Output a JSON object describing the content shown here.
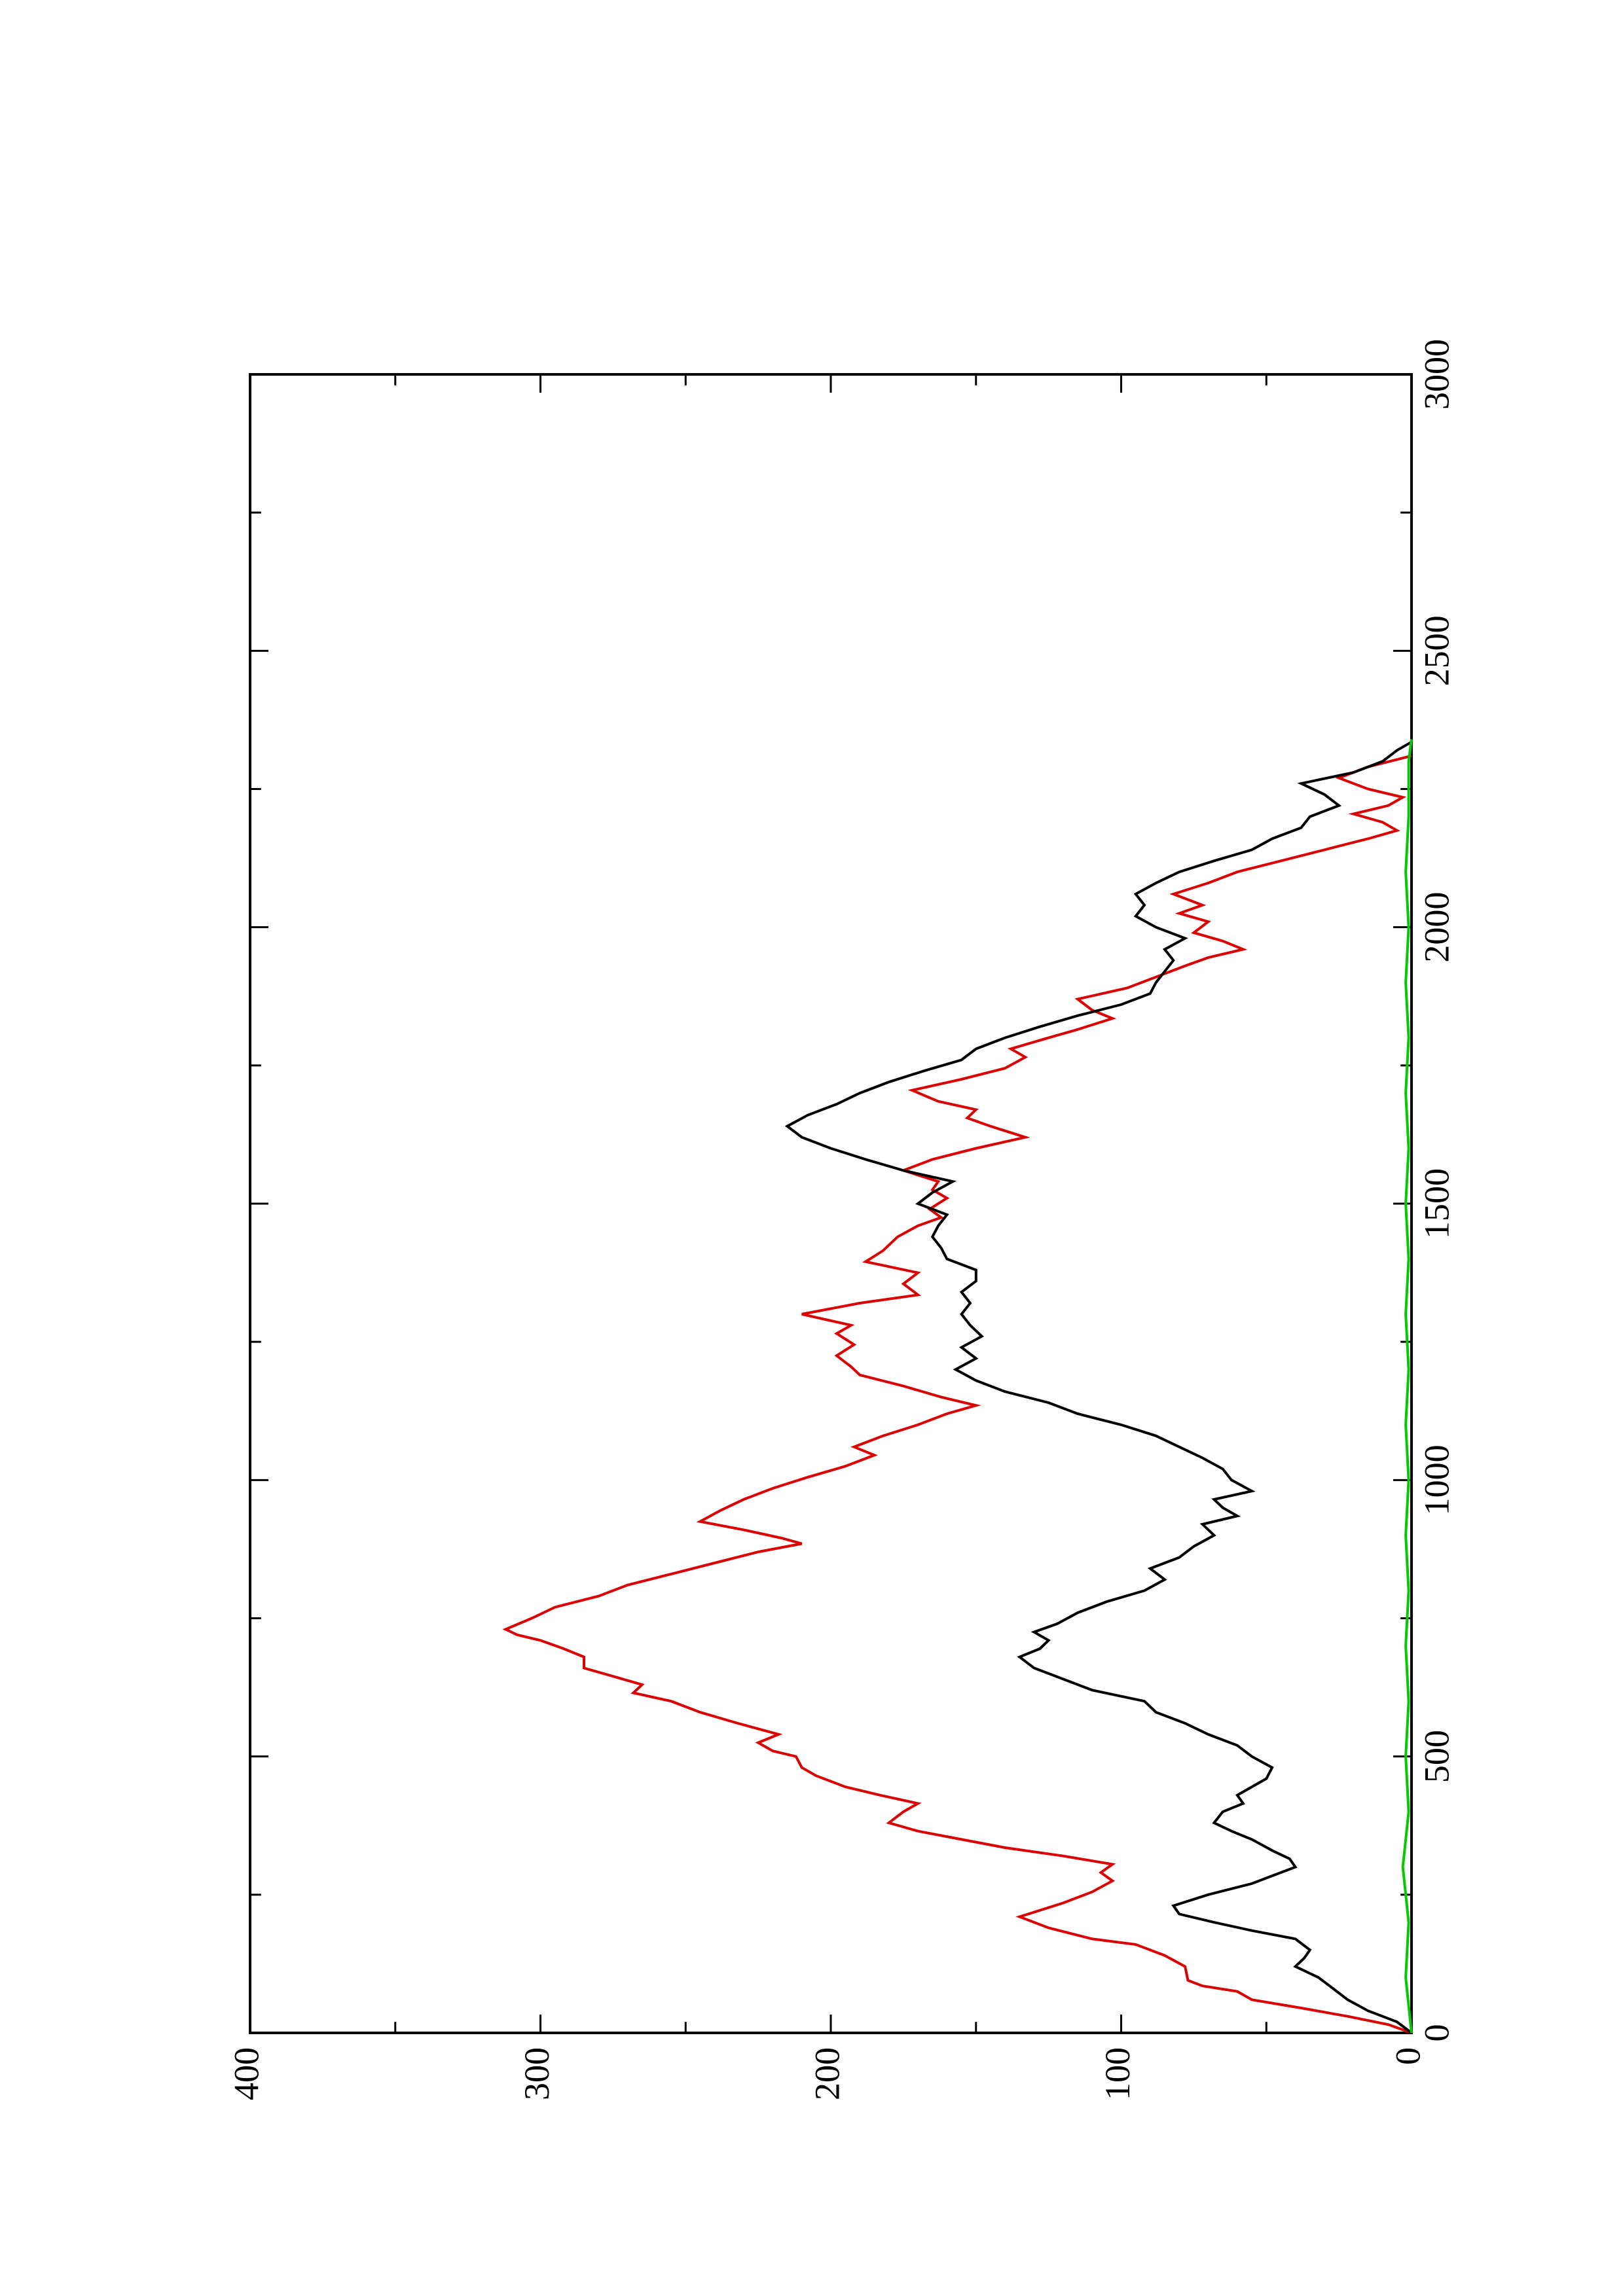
{
  "chart_data": {
    "type": "line",
    "rotated": "90 degrees counter-clockwise",
    "xlim": [
      0,
      3000
    ],
    "ylim": [
      0,
      400
    ],
    "x_ticks": [
      0,
      500,
      1000,
      1500,
      2000,
      2500,
      3000
    ],
    "y_ticks": [
      0,
      100,
      200,
      300,
      400
    ],
    "x_tick_labels": [
      "0",
      "500",
      "1000",
      "1500",
      "2000",
      "2500",
      "3000"
    ],
    "y_tick_labels": [
      "0",
      "100",
      "200",
      "300",
      "400"
    ],
    "grid": false,
    "legend": "none",
    "series": [
      {
        "color": "#dd0000",
        "points": [
          [
            0,
            0
          ],
          [
            15,
            8
          ],
          [
            30,
            22
          ],
          [
            45,
            38
          ],
          [
            60,
            55
          ],
          [
            75,
            60
          ],
          [
            85,
            72
          ],
          [
            95,
            77
          ],
          [
            120,
            78
          ],
          [
            140,
            85
          ],
          [
            160,
            95
          ],
          [
            170,
            110
          ],
          [
            190,
            125
          ],
          [
            210,
            135
          ],
          [
            235,
            120
          ],
          [
            255,
            110
          ],
          [
            275,
            103
          ],
          [
            290,
            107
          ],
          [
            305,
            103
          ],
          [
            320,
            120
          ],
          [
            335,
            140
          ],
          [
            350,
            155
          ],
          [
            365,
            170
          ],
          [
            380,
            180
          ],
          [
            400,
            175
          ],
          [
            415,
            170
          ],
          [
            430,
            183
          ],
          [
            445,
            195
          ],
          [
            465,
            205
          ],
          [
            480,
            210
          ],
          [
            500,
            212
          ],
          [
            510,
            220
          ],
          [
            525,
            225
          ],
          [
            540,
            218
          ],
          [
            560,
            232
          ],
          [
            580,
            245
          ],
          [
            600,
            255
          ],
          [
            615,
            268
          ],
          [
            630,
            265
          ],
          [
            645,
            275
          ],
          [
            660,
            285
          ],
          [
            680,
            285
          ],
          [
            695,
            292
          ],
          [
            710,
            300
          ],
          [
            720,
            308
          ],
          [
            730,
            312
          ],
          [
            750,
            303
          ],
          [
            770,
            295
          ],
          [
            790,
            280
          ],
          [
            810,
            270
          ],
          [
            830,
            255
          ],
          [
            850,
            240
          ],
          [
            870,
            225
          ],
          [
            885,
            210
          ],
          [
            895,
            217
          ],
          [
            910,
            230
          ],
          [
            925,
            245
          ],
          [
            945,
            238
          ],
          [
            965,
            230
          ],
          [
            985,
            220
          ],
          [
            1005,
            208
          ],
          [
            1025,
            195
          ],
          [
            1045,
            185
          ],
          [
            1060,
            192
          ],
          [
            1080,
            182
          ],
          [
            1100,
            170
          ],
          [
            1120,
            160
          ],
          [
            1135,
            150
          ],
          [
            1150,
            162
          ],
          [
            1170,
            175
          ],
          [
            1190,
            190
          ],
          [
            1205,
            193
          ],
          [
            1225,
            198
          ],
          [
            1245,
            192
          ],
          [
            1265,
            198
          ],
          [
            1280,
            193
          ],
          [
            1300,
            210
          ],
          [
            1320,
            190
          ],
          [
            1335,
            170
          ],
          [
            1355,
            175
          ],
          [
            1375,
            170
          ],
          [
            1395,
            188
          ],
          [
            1415,
            182
          ],
          [
            1440,
            177
          ],
          [
            1460,
            170
          ],
          [
            1475,
            162
          ],
          [
            1490,
            166
          ],
          [
            1510,
            160
          ],
          [
            1525,
            165
          ],
          [
            1540,
            163
          ],
          [
            1560,
            175
          ],
          [
            1580,
            165
          ],
          [
            1600,
            150
          ],
          [
            1620,
            133
          ],
          [
            1640,
            145
          ],
          [
            1655,
            153
          ],
          [
            1670,
            150
          ],
          [
            1685,
            163
          ],
          [
            1705,
            172
          ],
          [
            1725,
            155
          ],
          [
            1745,
            140
          ],
          [
            1765,
            133
          ],
          [
            1780,
            138
          ],
          [
            1800,
            125
          ],
          [
            1815,
            115
          ],
          [
            1835,
            103
          ],
          [
            1850,
            110
          ],
          [
            1870,
            115
          ],
          [
            1890,
            98
          ],
          [
            1910,
            88
          ],
          [
            1930,
            78
          ],
          [
            1945,
            70
          ],
          [
            1960,
            58
          ],
          [
            1975,
            65
          ],
          [
            1990,
            75
          ],
          [
            2010,
            70
          ],
          [
            2025,
            80
          ],
          [
            2040,
            72
          ],
          [
            2060,
            82
          ],
          [
            2080,
            70
          ],
          [
            2100,
            60
          ],
          [
            2120,
            45
          ],
          [
            2140,
            30
          ],
          [
            2160,
            15
          ],
          [
            2175,
            5
          ],
          [
            2190,
            10
          ],
          [
            2205,
            20
          ],
          [
            2220,
            8
          ],
          [
            2235,
            3
          ],
          [
            2250,
            15
          ],
          [
            2270,
            25
          ],
          [
            2290,
            15
          ],
          [
            2310,
            0
          ]
        ]
      },
      {
        "color": "#000000",
        "points": [
          [
            0,
            0
          ],
          [
            20,
            5
          ],
          [
            40,
            15
          ],
          [
            60,
            22
          ],
          [
            80,
            27
          ],
          [
            100,
            32
          ],
          [
            120,
            40
          ],
          [
            135,
            37
          ],
          [
            150,
            35
          ],
          [
            170,
            40
          ],
          [
            185,
            55
          ],
          [
            200,
            68
          ],
          [
            215,
            80
          ],
          [
            230,
            82
          ],
          [
            250,
            70
          ],
          [
            270,
            55
          ],
          [
            290,
            45
          ],
          [
            300,
            40
          ],
          [
            315,
            42
          ],
          [
            330,
            48
          ],
          [
            350,
            55
          ],
          [
            365,
            62
          ],
          [
            380,
            68
          ],
          [
            400,
            65
          ],
          [
            415,
            58
          ],
          [
            430,
            60
          ],
          [
            445,
            55
          ],
          [
            460,
            50
          ],
          [
            480,
            48
          ],
          [
            500,
            55
          ],
          [
            520,
            60
          ],
          [
            540,
            70
          ],
          [
            560,
            78
          ],
          [
            580,
            88
          ],
          [
            600,
            92
          ],
          [
            620,
            110
          ],
          [
            640,
            120
          ],
          [
            660,
            130
          ],
          [
            680,
            135
          ],
          [
            695,
            128
          ],
          [
            710,
            125
          ],
          [
            725,
            130
          ],
          [
            740,
            122
          ],
          [
            760,
            115
          ],
          [
            780,
            105
          ],
          [
            800,
            92
          ],
          [
            820,
            85
          ],
          [
            840,
            90
          ],
          [
            860,
            80
          ],
          [
            880,
            75
          ],
          [
            900,
            68
          ],
          [
            920,
            72
          ],
          [
            935,
            60
          ],
          [
            950,
            65
          ],
          [
            965,
            68
          ],
          [
            980,
            55
          ],
          [
            1000,
            62
          ],
          [
            1020,
            65
          ],
          [
            1040,
            72
          ],
          [
            1060,
            80
          ],
          [
            1080,
            88
          ],
          [
            1100,
            100
          ],
          [
            1120,
            115
          ],
          [
            1140,
            125
          ],
          [
            1160,
            140
          ],
          [
            1180,
            150
          ],
          [
            1200,
            157
          ],
          [
            1220,
            150
          ],
          [
            1240,
            155
          ],
          [
            1260,
            148
          ],
          [
            1280,
            152
          ],
          [
            1300,
            155
          ],
          [
            1320,
            152
          ],
          [
            1340,
            155
          ],
          [
            1360,
            150
          ],
          [
            1380,
            150
          ],
          [
            1400,
            160
          ],
          [
            1420,
            162
          ],
          [
            1440,
            165
          ],
          [
            1460,
            163
          ],
          [
            1480,
            160
          ],
          [
            1500,
            170
          ],
          [
            1520,
            165
          ],
          [
            1540,
            158
          ],
          [
            1560,
            175
          ],
          [
            1580,
            188
          ],
          [
            1600,
            200
          ],
          [
            1620,
            210
          ],
          [
            1640,
            215
          ],
          [
            1660,
            208
          ],
          [
            1680,
            198
          ],
          [
            1700,
            190
          ],
          [
            1720,
            180
          ],
          [
            1740,
            168
          ],
          [
            1760,
            155
          ],
          [
            1780,
            150
          ],
          [
            1800,
            140
          ],
          [
            1820,
            128
          ],
          [
            1840,
            115
          ],
          [
            1860,
            100
          ],
          [
            1880,
            90
          ],
          [
            1900,
            88
          ],
          [
            1920,
            85
          ],
          [
            1940,
            82
          ],
          [
            1960,
            85
          ],
          [
            1980,
            78
          ],
          [
            2000,
            88
          ],
          [
            2020,
            95
          ],
          [
            2040,
            92
          ],
          [
            2060,
            95
          ],
          [
            2080,
            88
          ],
          [
            2100,
            80
          ],
          [
            2120,
            68
          ],
          [
            2140,
            55
          ],
          [
            2160,
            48
          ],
          [
            2180,
            38
          ],
          [
            2200,
            35
          ],
          [
            2220,
            25
          ],
          [
            2240,
            30
          ],
          [
            2260,
            38
          ],
          [
            2280,
            20
          ],
          [
            2300,
            10
          ],
          [
            2320,
            5
          ],
          [
            2335,
            0
          ]
        ]
      },
      {
        "color": "#00cc00",
        "points": [
          [
            0,
            0
          ],
          [
            100,
            2
          ],
          [
            200,
            1
          ],
          [
            300,
            3
          ],
          [
            400,
            1
          ],
          [
            500,
            2
          ],
          [
            600,
            1
          ],
          [
            700,
            2
          ],
          [
            800,
            1
          ],
          [
            900,
            2
          ],
          [
            1000,
            1
          ],
          [
            1100,
            2
          ],
          [
            1200,
            1
          ],
          [
            1300,
            2
          ],
          [
            1400,
            1
          ],
          [
            1500,
            2
          ],
          [
            1600,
            1
          ],
          [
            1700,
            2
          ],
          [
            1800,
            1
          ],
          [
            1900,
            2
          ],
          [
            2000,
            1
          ],
          [
            2100,
            2
          ],
          [
            2200,
            1
          ],
          [
            2300,
            1
          ],
          [
            2340,
            0
          ]
        ]
      }
    ]
  }
}
